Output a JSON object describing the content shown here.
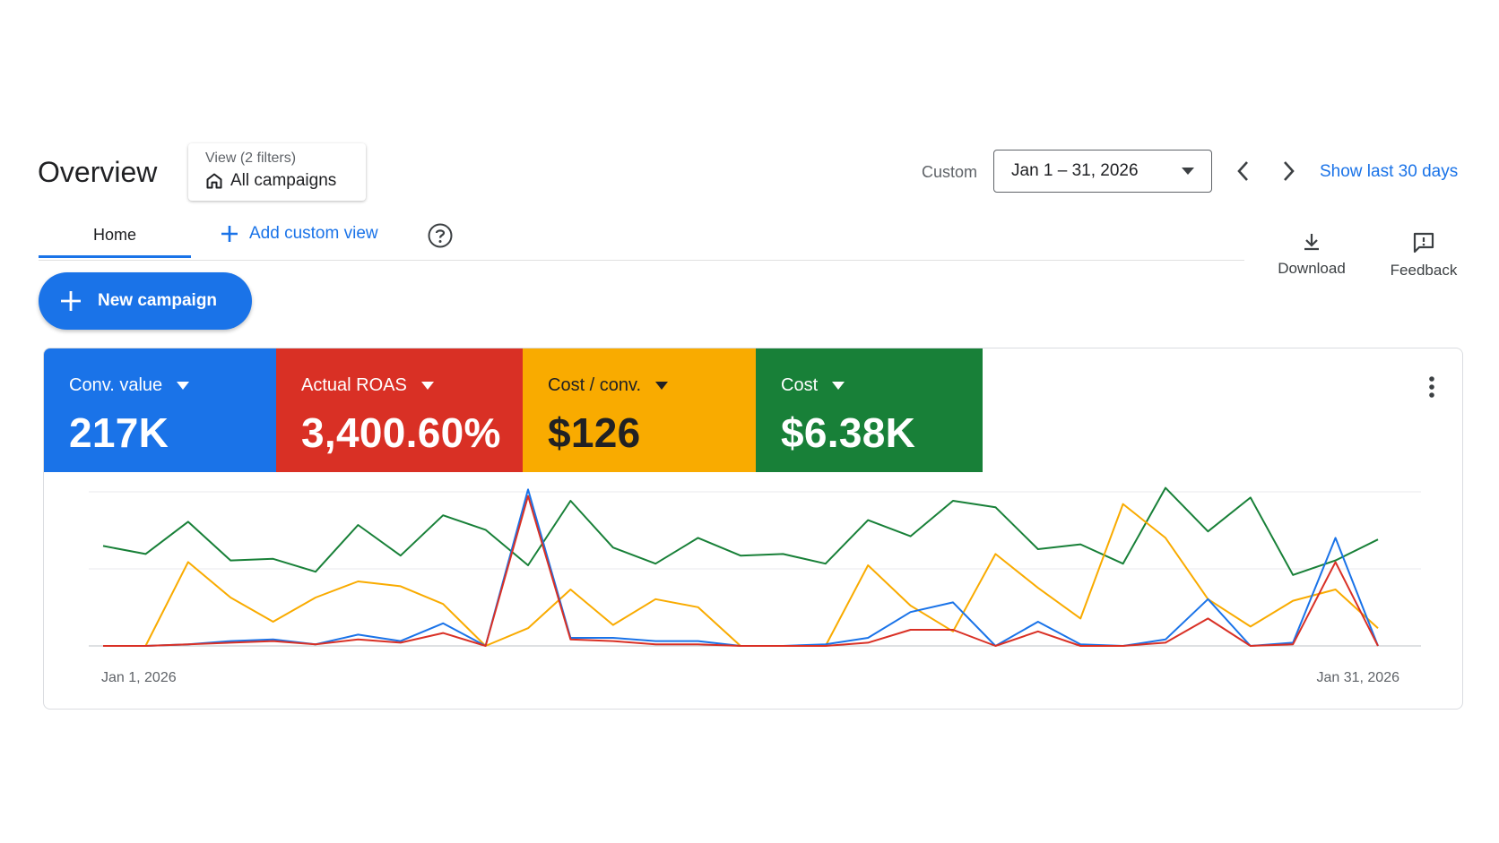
{
  "header": {
    "title": "Overview",
    "view_filter": {
      "caption": "View (2 filters)",
      "value": "All campaigns"
    },
    "date_range": {
      "mode_label": "Custom",
      "value": "Jan 1 – 31, 2026"
    },
    "show_last_label": "Show last 30 days"
  },
  "tabs": {
    "home_label": "Home",
    "add_view_label": "Add custom view"
  },
  "toolbar": {
    "download_label": "Download",
    "feedback_label": "Feedback"
  },
  "new_campaign_label": "New campaign",
  "metrics": [
    {
      "label": "Conv. value",
      "value": "217K",
      "color": "#1a73e8"
    },
    {
      "label": "Actual ROAS",
      "value": "3,400.60%",
      "color": "#d93025"
    },
    {
      "label": "Cost / conv.",
      "value": "$126",
      "color": "#f9ab00"
    },
    {
      "label": "Cost",
      "value": "$6.38K",
      "color": "#188038"
    }
  ],
  "colors": {
    "accent": "#1a73e8",
    "green": "#188038",
    "red": "#d93025",
    "yellow": "#f9ab00"
  },
  "chart_data": {
    "type": "line",
    "x_labels": [
      "Jan 1, 2026",
      "Jan 31, 2026"
    ],
    "x": [
      1,
      2,
      3,
      4,
      5,
      6,
      7,
      8,
      9,
      10,
      11,
      12,
      13,
      14,
      15,
      16,
      17,
      18,
      19,
      20,
      21,
      22,
      23,
      24,
      25,
      26,
      27,
      28,
      29,
      30,
      31
    ],
    "grid": true,
    "series": [
      {
        "color": "#188038",
        "values": [
          0.62,
          0.57,
          0.77,
          0.53,
          0.54,
          0.46,
          0.75,
          0.56,
          0.81,
          0.72,
          0.5,
          0.9,
          0.61,
          0.51,
          0.67,
          0.56,
          0.57,
          0.51,
          0.78,
          0.68,
          0.9,
          0.86,
          0.6,
          0.63,
          0.51,
          0.98,
          0.71,
          0.92,
          0.44,
          0.53,
          0.66
        ]
      },
      {
        "color": "#f9ab00",
        "values": [
          0,
          0,
          0.52,
          0.3,
          0.15,
          0.3,
          0.4,
          0.37,
          0.26,
          0,
          0.11,
          0.35,
          0.13,
          0.29,
          0.24,
          0,
          0,
          0,
          0.5,
          0.25,
          0.09,
          0.57,
          0.36,
          0.17,
          0.88,
          0.67,
          0.29,
          0.12,
          0.28,
          0.35,
          0.11
        ]
      },
      {
        "color": "#1a73e8",
        "values": [
          0,
          0,
          0.01,
          0.03,
          0.04,
          0.01,
          0.07,
          0.03,
          0.14,
          0,
          0.97,
          0.05,
          0.05,
          0.03,
          0.03,
          0,
          0,
          0.01,
          0.05,
          0.21,
          0.27,
          0,
          0.15,
          0.01,
          0,
          0.04,
          0.29,
          0,
          0.02,
          0.67,
          0
        ]
      },
      {
        "color": "#d93025",
        "values": [
          0,
          0,
          0.01,
          0.02,
          0.03,
          0.01,
          0.04,
          0.02,
          0.08,
          0,
          0.93,
          0.04,
          0.03,
          0.01,
          0.01,
          0,
          0,
          0,
          0.02,
          0.1,
          0.1,
          0,
          0.09,
          0,
          0,
          0.02,
          0.17,
          0,
          0.01,
          0.52,
          0
        ]
      }
    ]
  }
}
